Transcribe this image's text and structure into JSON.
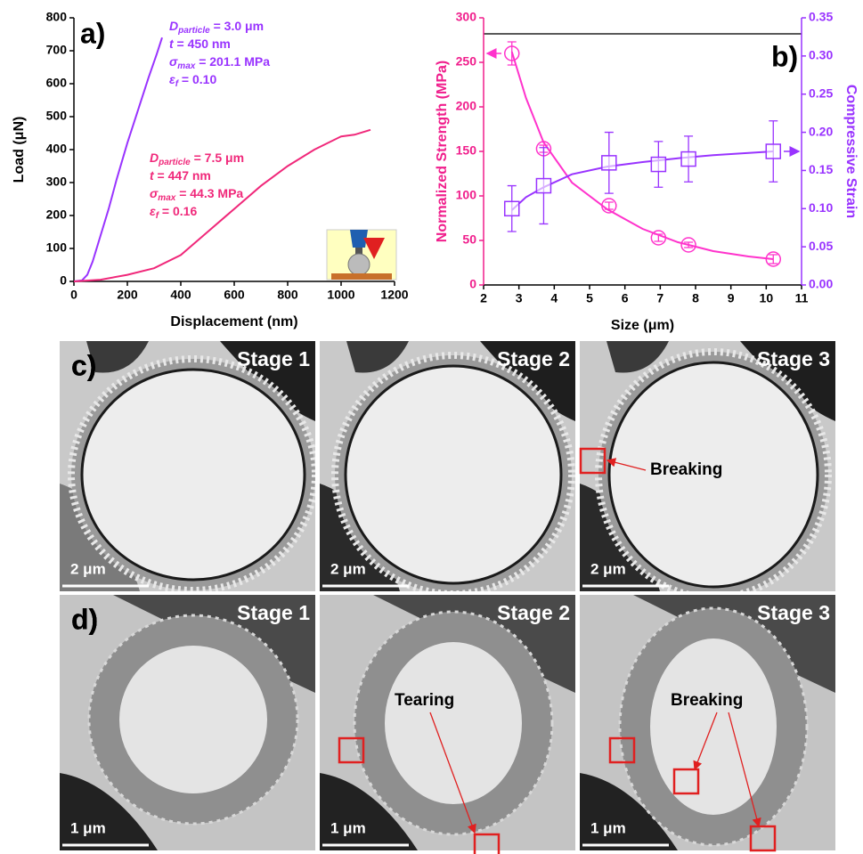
{
  "chart_data": [
    {
      "type": "line",
      "panel": "a)",
      "xlabel": "Displacement (nm)",
      "ylabel": "Load (μN)",
      "xlim": [
        0,
        1200
      ],
      "xticks": [
        0,
        200,
        400,
        600,
        800,
        1000,
        1200
      ],
      "ylim": [
        0,
        800
      ],
      "yticks": [
        0,
        100,
        200,
        300,
        400,
        500,
        600,
        700,
        800
      ],
      "series": [
        {
          "color": "#9933ff",
          "x": [
            0,
            30,
            50,
            70,
            100,
            130,
            160,
            200,
            240,
            280,
            310,
            330
          ],
          "values": [
            0,
            3,
            20,
            60,
            140,
            220,
            310,
            420,
            520,
            620,
            690,
            740
          ]
        },
        {
          "color": "#f0287a",
          "x": [
            0,
            100,
            200,
            300,
            400,
            500,
            600,
            700,
            800,
            900,
            1000,
            1050,
            1110
          ],
          "values": [
            0,
            5,
            20,
            40,
            80,
            150,
            220,
            290,
            350,
            400,
            440,
            445,
            460
          ]
        }
      ],
      "annotations": [
        {
          "color": "#9933ff",
          "lines": [
            {
              "main": "D",
              "sub": "particle",
              "text": " = 3.0 μm"
            },
            {
              "main": "t",
              "text": " = 450 nm"
            },
            {
              "main": "σ",
              "sub": "max",
              "text": " = 201.1 MPa"
            },
            {
              "main": "ε",
              "sub": "f",
              "text": " = 0.10"
            }
          ]
        },
        {
          "color": "#f0287a",
          "lines": [
            {
              "main": "D",
              "sub": "particle",
              "text": " = 7.5 μm"
            },
            {
              "main": "t",
              "text": " = 447 nm"
            },
            {
              "main": "σ",
              "sub": "max",
              "text": " = 44.3 MPa"
            },
            {
              "main": "ε",
              "sub": "f",
              "text": " = 0.16"
            }
          ]
        }
      ]
    },
    {
      "type": "scatter",
      "panel": "b)",
      "xlabel": "Size (μm)",
      "ylabel": "Normalized Strength (MPa)",
      "y2label": "Compressive Strain",
      "ylabel_color": "#f01e8c",
      "y2label_color": "#9933ff",
      "xlim": [
        2,
        11
      ],
      "xticks": [
        2,
        3,
        4,
        5,
        6,
        7,
        8,
        9,
        10,
        11
      ],
      "ylim": [
        0,
        300
      ],
      "yticks": [
        0,
        50,
        100,
        150,
        200,
        250,
        300
      ],
      "y2lim": [
        0,
        0.35
      ],
      "y2ticks": [
        {
          "value": 0,
          "label": "0.00"
        },
        0.05,
        {
          "value": 0.1,
          "label": "0.10"
        },
        0.15,
        {
          "value": 0.2,
          "label": "0.20"
        },
        0.25,
        {
          "value": 0.3,
          "label": "0.30"
        },
        0.35
      ],
      "series": [
        {
          "color": "#ff33cc",
          "marker": "circle",
          "x": [
            2.8,
            3.7,
            5.55,
            6.95,
            7.8,
            10.2
          ],
          "values": [
            260,
            153,
            89,
            53,
            45,
            29
          ],
          "errors": [
            13,
            4,
            4,
            4,
            3,
            5
          ]
        },
        {
          "color": "#9933ff",
          "marker": "square",
          "axis": "y2",
          "x": [
            2.8,
            3.7,
            5.55,
            6.95,
            7.8,
            10.2
          ],
          "values": [
            0.1,
            0.13,
            0.16,
            0.158,
            0.165,
            0.175
          ],
          "errors": [
            0.03,
            0.05,
            0.04,
            0.03,
            0.03,
            0.04
          ]
        }
      ],
      "fits": [
        {
          "color": "#ff33cc",
          "x": [
            2.8,
            3.2,
            3.7,
            4.5,
            5.5,
            6.5,
            7.5,
            8.5,
            9.5,
            10.2
          ],
          "values": [
            262,
            210,
            160,
            115,
            85,
            63,
            48,
            38,
            32,
            29
          ]
        },
        {
          "color": "#9933ff",
          "axis": "y2",
          "x": [
            2.8,
            3.2,
            3.7,
            4.5,
            5.5,
            6.5,
            7.5,
            8.5,
            9.5,
            10.2
          ],
          "values": [
            0.098,
            0.115,
            0.128,
            0.145,
            0.155,
            0.161,
            0.166,
            0.17,
            0.173,
            0.175
          ]
        }
      ]
    }
  ],
  "figure_c": {
    "label": "c)",
    "frames": [
      {
        "stage": "Stage 1",
        "scale_bar": "2 μm"
      },
      {
        "stage": "Stage 2",
        "scale_bar": "2 μm"
      },
      {
        "stage": "Stage 3",
        "scale_bar": "2 μm"
      }
    ],
    "annotations": [
      "Breaking"
    ]
  },
  "figure_d": {
    "label": "d)",
    "frames": [
      {
        "stage": "Stage 1",
        "scale_bar": "1 μm"
      },
      {
        "stage": "Stage 2",
        "scale_bar": "1 μm"
      },
      {
        "stage": "Stage 3",
        "scale_bar": "1 μm"
      }
    ],
    "annotations": [
      "Tearing",
      "Breaking"
    ]
  }
}
